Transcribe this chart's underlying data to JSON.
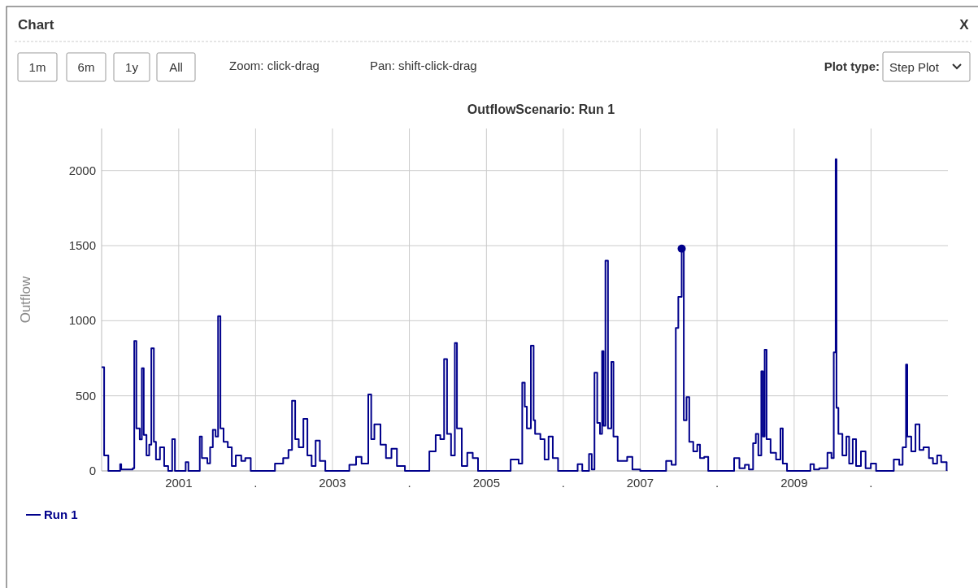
{
  "chart_data": {
    "type": "step",
    "title": "OutflowScenario: Run 1",
    "ylabel": "Outflow",
    "annotations": [
      "Chart",
      "X",
      "1m",
      "6m",
      "1y",
      "All",
      "Zoom: click-drag",
      "Pan: shift-click-drag",
      "Plot type:",
      "Step Plot"
    ],
    "xlim": [
      "2000-01-01",
      "2011-01-01"
    ],
    "xticks": [
      {
        "value": "2001-01-01",
        "label": "2001"
      },
      {
        "value": "2002-01-01",
        "label": "."
      },
      {
        "value": "2003-01-01",
        "label": "2003"
      },
      {
        "value": "2004-01-01",
        "label": "."
      },
      {
        "value": "2005-01-01",
        "label": "2005"
      },
      {
        "value": "2006-01-01",
        "label": "."
      },
      {
        "value": "2007-01-01",
        "label": "2007"
      },
      {
        "value": "2008-01-01",
        "label": "."
      },
      {
        "value": "2009-01-01",
        "label": "2009"
      },
      {
        "value": "2010-01-01",
        "label": "."
      }
    ],
    "ylim": [
      0,
      2280
    ],
    "yticks": [
      0,
      500,
      1000,
      1500,
      2000
    ],
    "grid": true,
    "legend": "bottom left",
    "line_style": "solid",
    "x": [
      "2000-01-01",
      "2000-01-13",
      "2000-02-02",
      "2000-03-29",
      "2000-04-03",
      "2000-05-28",
      "2000-06-04",
      "2000-06-14",
      "2000-06-30",
      "2000-07-10",
      "2000-07-19",
      "2000-08-01",
      "2000-08-14",
      "2000-08-24",
      "2000-09-05",
      "2000-09-15",
      "2000-10-04",
      "2000-10-24",
      "2000-11-12",
      "2000-12-01",
      "2000-12-14",
      "2001-02-03",
      "2001-02-16",
      "2001-04-08",
      "2001-04-11",
      "2001-04-21",
      "2001-05-17",
      "2001-05-30",
      "2001-06-12",
      "2001-06-25",
      "2001-07-07",
      "2001-07-18",
      "2001-08-02",
      "2001-08-22",
      "2001-09-10",
      "2001-09-29",
      "2001-10-25",
      "2001-11-13",
      "2001-12-09",
      "2002-01-29",
      "2002-04-03",
      "2002-05-12",
      "2002-06-06",
      "2002-06-23",
      "2002-07-08",
      "2002-07-25",
      "2002-08-16",
      "2002-09-04",
      "2002-09-24",
      "2002-10-13",
      "2002-11-02",
      "2002-11-28",
      "2003-02-18",
      "2003-03-22",
      "2003-04-23",
      "2003-05-19",
      "2003-06-20",
      "2003-07-04",
      "2003-07-19",
      "2003-08-17",
      "2003-09-12",
      "2003-10-08",
      "2003-11-03",
      "2003-12-11",
      "2004-03-29",
      "2004-04-05",
      "2004-05-05",
      "2004-05-27",
      "2004-06-14",
      "2004-06-28",
      "2004-07-17",
      "2004-08-04",
      "2004-08-14",
      "2004-09-06",
      "2004-10-02",
      "2004-10-28",
      "2004-11-22",
      "2005-03-18",
      "2005-04-26",
      "2005-06-03",
      "2005-06-20",
      "2005-07-02",
      "2005-07-12",
      "2005-07-31",
      "2005-08-13",
      "2005-08-20",
      "2005-09-14",
      "2005-10-04",
      "2005-10-23",
      "2005-11-12",
      "2005-12-07",
      "2006-02-28",
      "2006-03-10",
      "2006-04-01",
      "2006-05-03",
      "2006-05-16",
      "2006-05-29",
      "2006-06-11",
      "2006-06-24",
      "2006-07-04",
      "2006-07-11",
      "2006-07-20",
      "2006-08-01",
      "2006-08-17",
      "2006-08-27",
      "2006-09-16",
      "2006-10-31",
      "2006-11-25",
      "2007-01-01",
      "2007-04-09",
      "2007-05-04",
      "2007-05-30",
      "2007-06-19",
      "2007-07-01",
      "2007-07-17",
      "2007-07-27",
      "2007-08-09",
      "2007-08-22",
      "2007-09-10",
      "2007-09-29",
      "2007-10-12",
      "2007-11-01",
      "2007-11-20",
      "2008-02-11",
      "2008-03-22",
      "2008-04-16",
      "2008-05-12",
      "2008-05-31",
      "2008-06-20",
      "2008-07-03",
      "2008-07-15",
      "2008-07-29",
      "2008-08-06",
      "2008-08-14",
      "2008-08-23",
      "2008-09-11",
      "2008-10-07",
      "2008-10-28",
      "2008-11-08",
      "2008-11-28",
      "2009-03-10",
      "2009-03-19",
      "2009-04-05",
      "2009-04-30",
      "2009-06-02",
      "2009-06-08",
      "2009-06-27",
      "2009-07-08",
      "2009-07-17",
      "2009-07-21",
      "2009-07-30",
      "2009-08-18",
      "2009-09-06",
      "2009-09-19",
      "2009-10-06",
      "2009-10-22",
      "2009-11-14",
      "2009-12-06",
      "2009-12-31",
      "2010-01-25",
      "2010-04-06",
      "2010-04-19",
      "2010-05-15",
      "2010-05-31",
      "2010-06-16",
      "2010-06-22",
      "2010-07-11",
      "2010-07-31",
      "2010-08-19",
      "2010-09-07",
      "2010-10-03",
      "2010-10-22",
      "2010-11-11",
      "2010-11-30",
      "2010-12-26"
    ],
    "series": [
      {
        "name": "Run 1",
        "color": "#00008b",
        "values": [
          690,
          103,
          0,
          45,
          9,
          18,
          865,
          283,
          210,
          684,
          240,
          103,
          175,
          816,
          193,
          76,
          157,
          32,
          0,
          211,
          0,
          58,
          0,
          0,
          229,
          85,
          50,
          157,
          274,
          229,
          1030,
          283,
          193,
          157,
          32,
          103,
          67,
          85,
          0,
          0,
          49,
          85,
          139,
          467,
          211,
          157,
          347,
          103,
          32,
          202,
          67,
          0,
          0,
          40,
          94,
          49,
          509,
          211,
          310,
          175,
          85,
          148,
          32,
          0,
          0,
          130,
          238,
          211,
          744,
          247,
          103,
          852,
          283,
          32,
          121,
          85,
          0,
          0,
          76,
          49,
          587,
          428,
          283,
          834,
          337,
          247,
          211,
          76,
          229,
          85,
          0,
          0,
          45,
          0,
          112,
          9,
          654,
          319,
          247,
          798,
          301,
          1400,
          283,
          726,
          229,
          67,
          94,
          9,
          0,
          0,
          67,
          40,
          952,
          1159,
          1480,
          337,
          491,
          193,
          130,
          175,
          85,
          94,
          0,
          0,
          85,
          18,
          40,
          9,
          184,
          247,
          103,
          663,
          229,
          807,
          211,
          121,
          76,
          283,
          49,
          0,
          0,
          45,
          9,
          18,
          18,
          121,
          85,
          789,
          2075,
          420,
          247,
          103,
          229,
          49,
          211,
          32,
          130,
          18,
          49,
          0,
          0,
          76,
          40,
          157,
          708,
          229,
          130,
          310,
          139,
          157,
          85,
          49,
          103,
          58,
          0
        ]
      },
      {
        "type": "scatter",
        "marker": "circle",
        "color": "#00008b",
        "x": [
          "2007-07-17"
        ],
        "values": [
          1480
        ]
      }
    ]
  }
}
